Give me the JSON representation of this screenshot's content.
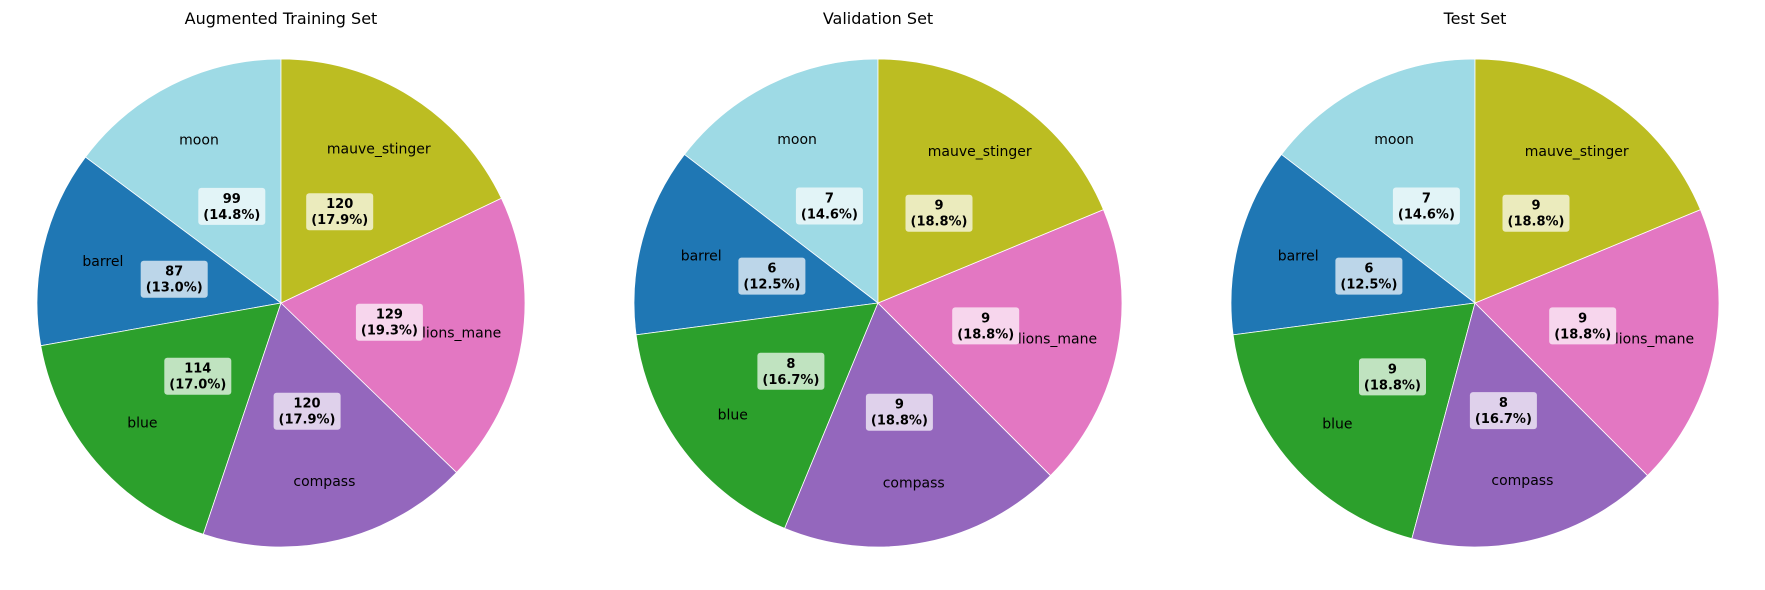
{
  "colors": {
    "barrel": "#1f77b4",
    "blue": "#2ca02c",
    "compass": "#9467bd",
    "lions_mane": "#e377c2",
    "mauve_stinger": "#bcbd22",
    "moon": "#9edae5"
  },
  "chart_data": [
    {
      "type": "pie",
      "title": "Augmented Training Set",
      "start_angle_deg": 90,
      "direction": "counterclockwise",
      "categories": [
        "moon",
        "barrel",
        "blue",
        "compass",
        "lions_mane",
        "mauve_stinger"
      ],
      "values": [
        99,
        87,
        114,
        120,
        129,
        120
      ],
      "value_labels": [
        "99",
        "87",
        "114",
        "120",
        "129",
        "120"
      ],
      "percent_labels": [
        "(14.8%)",
        "(13.0%)",
        "(17.0%)",
        "(17.9%)",
        "(19.3%)",
        "(17.9%)"
      ]
    },
    {
      "type": "pie",
      "title": "Validation Set",
      "start_angle_deg": 90,
      "direction": "counterclockwise",
      "categories": [
        "moon",
        "barrel",
        "blue",
        "compass",
        "lions_mane",
        "mauve_stinger"
      ],
      "values": [
        7,
        6,
        8,
        9,
        9,
        9
      ],
      "value_labels": [
        "7",
        "6",
        "8",
        "9",
        "9",
        "9"
      ],
      "percent_labels": [
        "(14.6%)",
        "(12.5%)",
        "(16.7%)",
        "(18.8%)",
        "(18.8%)",
        "(18.8%)"
      ]
    },
    {
      "type": "pie",
      "title": "Test Set",
      "start_angle_deg": 90,
      "direction": "counterclockwise",
      "categories": [
        "moon",
        "barrel",
        "blue",
        "compass",
        "lions_mane",
        "mauve_stinger"
      ],
      "values": [
        7,
        6,
        9,
        8,
        9,
        9
      ],
      "value_labels": [
        "7",
        "6",
        "9",
        "8",
        "9",
        "9"
      ],
      "percent_labels": [
        "(14.6%)",
        "(12.5%)",
        "(18.8%)",
        "(16.7%)",
        "(18.8%)",
        "(18.8%)"
      ]
    }
  ]
}
